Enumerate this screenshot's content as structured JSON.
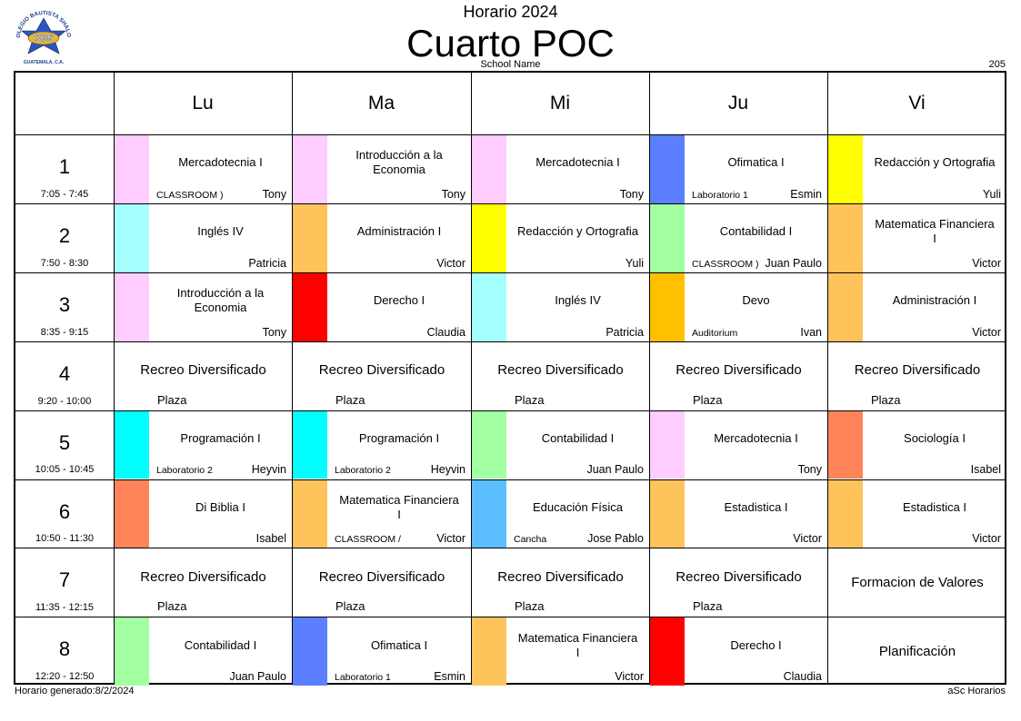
{
  "header": {
    "top_title": "Horario 2024",
    "class_title": "Cuarto POC",
    "school_name": "School Name",
    "room_number": "205"
  },
  "logo": {
    "ring_text": "COLEGIO BAUTISTA SHALOM",
    "abbrev": "CBS",
    "location": "GUATEMALA, C.A."
  },
  "footer": {
    "generated": "Horario generado:8/2/2024",
    "software": "aSc Horarios"
  },
  "days": [
    "Lu",
    "Ma",
    "Mi",
    "Ju",
    "Vi"
  ],
  "periods": [
    {
      "num": "1",
      "time": "7:05 - 7:45"
    },
    {
      "num": "2",
      "time": "7:50 - 8:30"
    },
    {
      "num": "3",
      "time": "8:35 - 9:15"
    },
    {
      "num": "4",
      "time": "9:20 - 10:00"
    },
    {
      "num": "5",
      "time": "10:05 - 10:45"
    },
    {
      "num": "6",
      "time": "10:50 - 11:30"
    },
    {
      "num": "7",
      "time": "11:35 - 12:15"
    },
    {
      "num": "8",
      "time": "12:20 - 12:50"
    }
  ],
  "schedule": [
    [
      {
        "subject": "Mercadotecnia I",
        "teacher": "Tony",
        "room": "CLASSROOM )",
        "color": "#ffccff"
      },
      {
        "subject": "Introducción a la Economia",
        "teacher": "Tony",
        "room": "",
        "color": "#ffccff"
      },
      {
        "subject": "Mercadotecnia I",
        "teacher": "Tony",
        "room": "",
        "color": "#ffccff"
      },
      {
        "subject": "Ofimatica I",
        "teacher": "Esmin",
        "room": "Laboratorio 1",
        "color": "#5b7fff"
      },
      {
        "subject": "Redacción y Ortografia",
        "teacher": "Yuli",
        "room": "",
        "color": "#ffff00"
      }
    ],
    [
      {
        "subject": "Inglés IV",
        "teacher": "Patricia",
        "room": "",
        "color": "#a6ffff"
      },
      {
        "subject": "Administración I",
        "teacher": "Victor",
        "room": "",
        "color": "#ffc35b"
      },
      {
        "subject": "Redacción y Ortografia",
        "teacher": "Yuli",
        "room": "",
        "color": "#ffff00"
      },
      {
        "subject": "Contabilidad I",
        "teacher": "Juan Paulo",
        "room": "CLASSROOM )",
        "color": "#a2ffa2"
      },
      {
        "subject": "Matematica Financiera I",
        "teacher": "Victor",
        "room": "",
        "color": "#ffc35b"
      }
    ],
    [
      {
        "subject": "Introducción a la Economia",
        "teacher": "Tony",
        "room": "",
        "color": "#ffccff"
      },
      {
        "subject": "Derecho I",
        "teacher": "Claudia",
        "room": "",
        "color": "#ff0000"
      },
      {
        "subject": "Inglés IV",
        "teacher": "Patricia",
        "room": "",
        "color": "#a6ffff"
      },
      {
        "subject": "Devo",
        "teacher": "Ivan",
        "room": "Auditorium",
        "color": "#ffc000"
      },
      {
        "subject": "Administración I",
        "teacher": "Victor",
        "room": "",
        "color": "#ffc35b"
      }
    ],
    [
      {
        "subject": "Recreo Diversificado",
        "teacher": "",
        "room": "Plaza",
        "color": ""
      },
      {
        "subject": "Recreo Diversificado",
        "teacher": "",
        "room": "Plaza",
        "color": ""
      },
      {
        "subject": "Recreo Diversificado",
        "teacher": "",
        "room": "Plaza",
        "color": ""
      },
      {
        "subject": "Recreo Diversificado",
        "teacher": "",
        "room": "Plaza",
        "color": ""
      },
      {
        "subject": "Recreo Diversificado",
        "teacher": "",
        "room": "Plaza",
        "color": ""
      }
    ],
    [
      {
        "subject": "Programación I",
        "teacher": "Heyvin",
        "room": "Laboratorio 2",
        "color": "#00ffff"
      },
      {
        "subject": "Programación I",
        "teacher": "Heyvin",
        "room": "Laboratorio 2",
        "color": "#00ffff"
      },
      {
        "subject": "Contabilidad I",
        "teacher": "Juan Paulo",
        "room": "",
        "color": "#a2ffa2"
      },
      {
        "subject": "Mercadotecnia I",
        "teacher": "Tony",
        "room": "",
        "color": "#ffccff"
      },
      {
        "subject": "Sociología I",
        "teacher": "Isabel",
        "room": "",
        "color": "#ff8459"
      }
    ],
    [
      {
        "subject": "Di Biblia I",
        "teacher": "Isabel",
        "room": "",
        "color": "#ff8459"
      },
      {
        "subject": "Matematica Financiera I",
        "teacher": "Victor",
        "room": "CLASSROOM /",
        "color": "#ffc35b"
      },
      {
        "subject": "Educación Física",
        "teacher": "Jose Pablo",
        "room": "Cancha",
        "color": "#5bbfff"
      },
      {
        "subject": "Estadistica I",
        "teacher": "Victor",
        "room": "",
        "color": "#ffc35b"
      },
      {
        "subject": "Estadistica I",
        "teacher": "Victor",
        "room": "",
        "color": "#ffc35b"
      }
    ],
    [
      {
        "subject": "Recreo Diversificado",
        "teacher": "",
        "room": "Plaza",
        "color": ""
      },
      {
        "subject": "Recreo Diversificado",
        "teacher": "",
        "room": "Plaza",
        "color": ""
      },
      {
        "subject": "Recreo Diversificado",
        "teacher": "",
        "room": "Plaza",
        "color": ""
      },
      {
        "subject": "Recreo Diversificado",
        "teacher": "",
        "room": "Plaza",
        "color": ""
      },
      {
        "subject": "Formacion de Valores",
        "teacher": "",
        "room": "",
        "color": ""
      }
    ],
    [
      {
        "subject": "Contabilidad I",
        "teacher": "Juan Paulo",
        "room": "",
        "color": "#a2ffa2"
      },
      {
        "subject": "Ofimatica I",
        "teacher": "Esmin",
        "room": "Laboratorio 1",
        "color": "#5b7fff"
      },
      {
        "subject": "Matematica Financiera I",
        "teacher": "Victor",
        "room": "",
        "color": "#ffc35b"
      },
      {
        "subject": "Derecho I",
        "teacher": "Claudia",
        "room": "",
        "color": "#ff0000"
      },
      {
        "subject": "Planificación",
        "teacher": "",
        "room": "",
        "color": ""
      }
    ]
  ]
}
